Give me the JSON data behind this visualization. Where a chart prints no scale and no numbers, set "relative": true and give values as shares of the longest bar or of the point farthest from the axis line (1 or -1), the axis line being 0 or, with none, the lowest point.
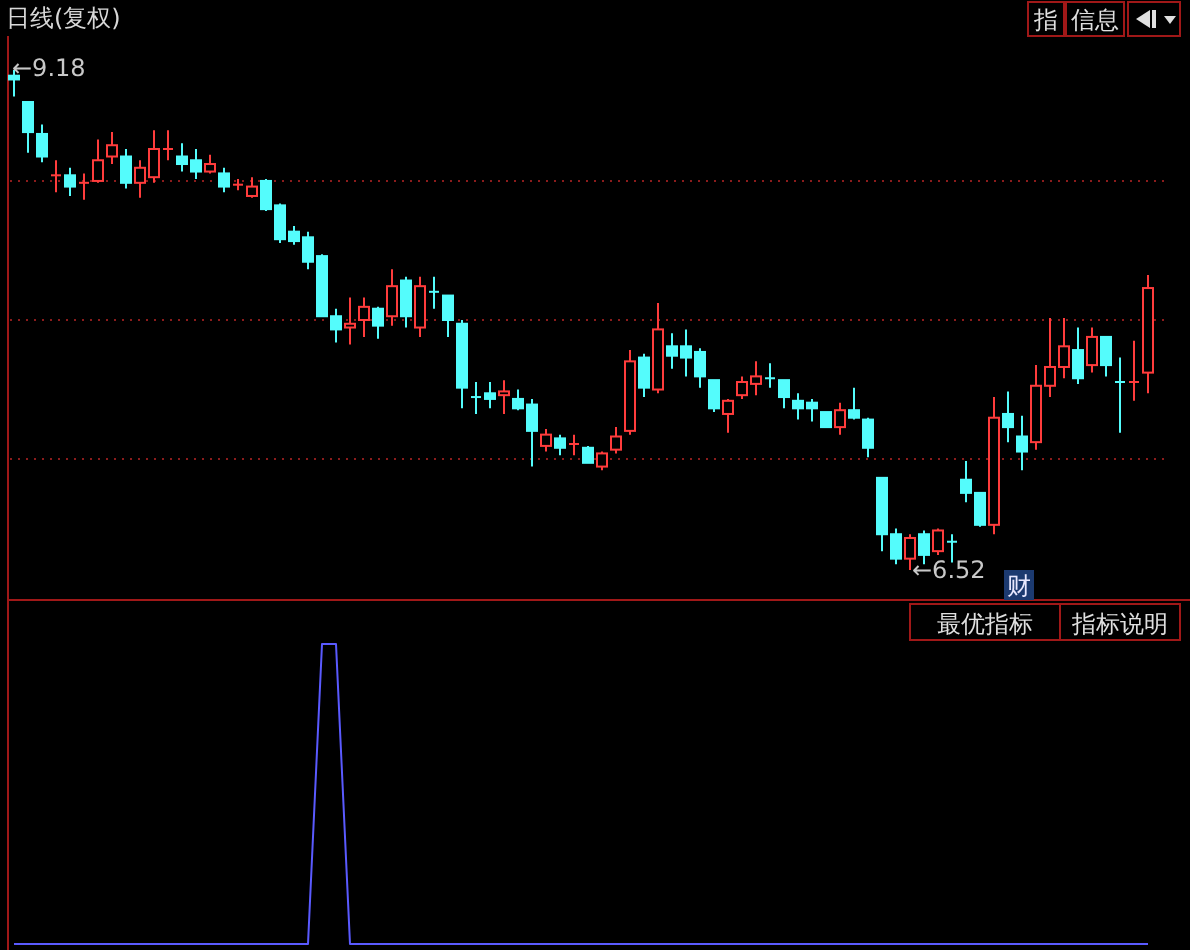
{
  "chart_data": [
    {
      "type": "candlestick",
      "title": "日线(复权)",
      "categories": [
        null,
        null,
        null,
        null,
        null,
        null,
        null,
        null,
        null,
        null,
        null,
        null,
        null,
        null,
        null,
        null,
        null,
        null,
        null,
        null,
        null,
        null,
        null,
        null,
        null,
        null,
        null,
        null,
        null,
        null,
        null,
        null,
        null,
        null,
        null,
        null,
        null,
        null,
        null,
        null,
        null,
        null,
        null,
        null,
        null,
        null,
        null,
        null,
        null,
        null,
        null,
        null,
        null,
        null,
        null,
        null,
        null,
        null,
        null,
        null,
        null,
        null,
        null,
        null,
        null,
        null,
        null,
        null,
        null,
        null,
        null,
        null,
        null,
        null,
        null,
        null,
        null,
        null,
        null,
        null,
        null,
        null
      ],
      "ohlc": [
        [
          9.15,
          9.18,
          9.04,
          9.13
        ],
        [
          9.01,
          9.01,
          8.74,
          8.85
        ],
        [
          8.84,
          8.89,
          8.69,
          8.72
        ],
        [
          8.62,
          8.7,
          8.53,
          8.62
        ],
        [
          8.62,
          8.66,
          8.51,
          8.56
        ],
        [
          8.58,
          8.63,
          8.49,
          8.58
        ],
        [
          8.59,
          8.81,
          8.58,
          8.7
        ],
        [
          8.72,
          8.85,
          8.68,
          8.78
        ],
        [
          8.72,
          8.76,
          8.55,
          8.58
        ],
        [
          8.58,
          8.7,
          8.5,
          8.66
        ],
        [
          8.61,
          8.86,
          8.58,
          8.76
        ],
        [
          8.76,
          8.86,
          8.7,
          8.76
        ],
        [
          8.72,
          8.79,
          8.64,
          8.68
        ],
        [
          8.7,
          8.76,
          8.6,
          8.64
        ],
        [
          8.64,
          8.73,
          8.63,
          8.68
        ],
        [
          8.63,
          8.66,
          8.53,
          8.56
        ],
        [
          8.57,
          8.6,
          8.54,
          8.57
        ],
        [
          8.51,
          8.61,
          8.5,
          8.56
        ],
        [
          8.59,
          8.6,
          8.43,
          8.44
        ],
        [
          8.46,
          8.47,
          8.26,
          8.28
        ],
        [
          8.32,
          8.35,
          8.25,
          8.27
        ],
        [
          8.29,
          8.32,
          8.12,
          8.16
        ],
        [
          8.19,
          8.2,
          7.87,
          7.87
        ],
        [
          7.87,
          7.91,
          7.73,
          7.8
        ],
        [
          7.81,
          7.97,
          7.72,
          7.83
        ],
        [
          7.85,
          7.97,
          7.76,
          7.92
        ],
        [
          7.91,
          7.92,
          7.75,
          7.82
        ],
        [
          7.87,
          8.12,
          7.82,
          8.03
        ],
        [
          8.06,
          8.08,
          7.81,
          7.87
        ],
        [
          7.81,
          8.08,
          7.76,
          8.03
        ],
        [
          8.0,
          8.08,
          7.91,
          8.0
        ],
        [
          7.98,
          7.98,
          7.76,
          7.85
        ],
        [
          7.83,
          7.85,
          7.38,
          7.49
        ],
        [
          7.44,
          7.52,
          7.35,
          7.44
        ],
        [
          7.46,
          7.52,
          7.38,
          7.43
        ],
        [
          7.45,
          7.53,
          7.35,
          7.47
        ],
        [
          7.43,
          7.48,
          7.37,
          7.38
        ],
        [
          7.4,
          7.43,
          7.07,
          7.26
        ],
        [
          7.18,
          7.27,
          7.15,
          7.24
        ],
        [
          7.22,
          7.24,
          7.13,
          7.17
        ],
        [
          7.19,
          7.24,
          7.13,
          7.19
        ],
        [
          7.17,
          7.18,
          7.09,
          7.09
        ],
        [
          7.07,
          7.15,
          7.05,
          7.14
        ],
        [
          7.16,
          7.28,
          7.14,
          7.23
        ],
        [
          7.26,
          7.69,
          7.24,
          7.63
        ],
        [
          7.65,
          7.67,
          7.44,
          7.49
        ],
        [
          7.48,
          7.94,
          7.46,
          7.8
        ],
        [
          7.71,
          7.78,
          7.59,
          7.66
        ],
        [
          7.71,
          7.8,
          7.55,
          7.65
        ],
        [
          7.68,
          7.7,
          7.49,
          7.55
        ],
        [
          7.53,
          7.53,
          7.36,
          7.38
        ],
        [
          7.35,
          7.43,
          7.25,
          7.42
        ],
        [
          7.45,
          7.55,
          7.43,
          7.52
        ],
        [
          7.51,
          7.63,
          7.45,
          7.55
        ],
        [
          7.54,
          7.62,
          7.49,
          7.54
        ],
        [
          7.53,
          7.53,
          7.38,
          7.44
        ],
        [
          7.42,
          7.46,
          7.32,
          7.38
        ],
        [
          7.41,
          7.43,
          7.31,
          7.38
        ],
        [
          7.36,
          7.36,
          7.28,
          7.28
        ],
        [
          7.28,
          7.41,
          7.24,
          7.37
        ],
        [
          7.37,
          7.49,
          7.32,
          7.33
        ],
        [
          7.32,
          7.33,
          7.12,
          7.17
        ],
        [
          7.01,
          7.01,
          6.62,
          6.71
        ],
        [
          6.71,
          6.74,
          6.55,
          6.58
        ],
        [
          6.58,
          6.71,
          6.52,
          6.69
        ],
        [
          6.71,
          6.73,
          6.55,
          6.6
        ],
        [
          6.62,
          6.74,
          6.6,
          6.73
        ],
        [
          6.67,
          6.71,
          6.56,
          6.67
        ],
        [
          7.0,
          7.1,
          6.88,
          6.93
        ],
        [
          6.93,
          6.93,
          6.75,
          6.76
        ],
        [
          6.76,
          7.44,
          6.71,
          7.33
        ],
        [
          7.35,
          7.47,
          7.2,
          7.28
        ],
        [
          7.23,
          7.34,
          7.05,
          7.15
        ],
        [
          7.2,
          7.61,
          7.16,
          7.5
        ],
        [
          7.5,
          7.86,
          7.44,
          7.6
        ],
        [
          7.6,
          7.86,
          7.54,
          7.71
        ],
        [
          7.69,
          7.81,
          7.51,
          7.54
        ],
        [
          7.61,
          7.81,
          7.57,
          7.76
        ],
        [
          7.76,
          7.76,
          7.55,
          7.61
        ],
        [
          7.52,
          7.65,
          7.25,
          7.52
        ],
        [
          7.52,
          7.74,
          7.42,
          7.52
        ],
        [
          7.57,
          8.09,
          7.46,
          8.02
        ]
      ],
      "colors": [
        "#54fcfc",
        "#54fcfc",
        "#54fcfc",
        "#ff3c3c",
        "#54fcfc",
        "#ff3c3c",
        "#ff3c3c",
        "#ff3c3c",
        "#54fcfc",
        "#ff3c3c",
        "#ff3c3c",
        "#ff3c3c",
        "#54fcfc",
        "#54fcfc",
        "#ff3c3c",
        "#54fcfc",
        "#ff3c3c",
        "#ff3c3c",
        "#54fcfc",
        "#54fcfc",
        "#54fcfc",
        "#54fcfc",
        "#54fcfc",
        "#54fcfc",
        "#ff3c3c",
        "#ff3c3c",
        "#54fcfc",
        "#ff3c3c",
        "#54fcfc",
        "#ff3c3c",
        "#54fcfc",
        "#54fcfc",
        "#54fcfc",
        "#54fcfc",
        "#54fcfc",
        "#ff3c3c",
        "#54fcfc",
        "#54fcfc",
        "#ff3c3c",
        "#54fcfc",
        "#ff3c3c",
        "#54fcfc",
        "#ff3c3c",
        "#ff3c3c",
        "#ff3c3c",
        "#54fcfc",
        "#ff3c3c",
        "#54fcfc",
        "#54fcfc",
        "#54fcfc",
        "#54fcfc",
        "#ff3c3c",
        "#ff3c3c",
        "#ff3c3c",
        "#54fcfc",
        "#54fcfc",
        "#54fcfc",
        "#54fcfc",
        "#54fcfc",
        "#ff3c3c",
        "#54fcfc",
        "#54fcfc",
        "#54fcfc",
        "#54fcfc",
        "#ff3c3c",
        "#54fcfc",
        "#ff3c3c",
        "#54fcfc",
        "#54fcfc",
        "#54fcfc",
        "#ff3c3c",
        "#54fcfc",
        "#54fcfc",
        "#ff3c3c",
        "#ff3c3c",
        "#ff3c3c",
        "#54fcfc",
        "#ff3c3c",
        "#54fcfc",
        "#54fcfc",
        "#ff3c3c",
        "#ff3c3c"
      ],
      "ylim": [
        6.36,
        9.34
      ],
      "yticks": [
        {
          "value": 8.59,
          "label": null
        },
        {
          "value": 7.85,
          "label": null
        },
        {
          "value": 7.11,
          "label": null
        }
      ],
      "grid": "y",
      "annotations": [
        "指",
        "信息",
        "财",
        "←9.18",
        "←6.52"
      ]
    },
    {
      "type": "line",
      "relative": true,
      "color": "#5a5aff",
      "categories": [
        null,
        null,
        null,
        null,
        null,
        null,
        null,
        null,
        null,
        null,
        null,
        null,
        null,
        null,
        null,
        null,
        null,
        null,
        null,
        null,
        null,
        null,
        null,
        null,
        null,
        null,
        null,
        null,
        null,
        null,
        null,
        null,
        null,
        null,
        null,
        null,
        null,
        null,
        null,
        null,
        null,
        null,
        null,
        null,
        null,
        null,
        null,
        null,
        null,
        null,
        null,
        null,
        null,
        null,
        null,
        null,
        null,
        null,
        null,
        null,
        null,
        null,
        null,
        null,
        null,
        null,
        null,
        null,
        null,
        null,
        null,
        null,
        null,
        null,
        null,
        null,
        null,
        null,
        null,
        null,
        null,
        null
      ],
      "values": [
        0,
        0,
        0,
        0,
        0,
        0,
        0,
        0,
        0,
        0,
        0,
        0,
        0,
        0,
        0,
        0,
        0,
        0,
        0,
        0,
        0,
        0,
        1,
        1,
        0,
        0,
        0,
        0,
        0,
        0,
        0,
        0,
        0,
        0,
        0,
        0,
        0,
        0,
        0,
        0,
        0,
        0,
        0,
        0,
        0,
        0,
        0,
        0,
        0,
        0,
        0,
        0,
        0,
        0,
        0,
        0,
        0,
        0,
        0,
        0,
        0,
        0,
        0,
        0,
        0,
        0,
        0,
        0,
        0,
        0,
        0,
        0,
        0,
        0,
        0,
        0,
        0,
        0,
        0,
        0,
        0,
        0
      ],
      "annotations": [
        "最优指标",
        "指标说明"
      ]
    }
  ]
}
